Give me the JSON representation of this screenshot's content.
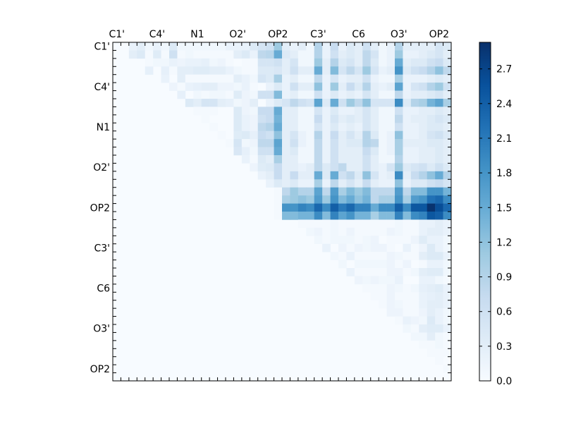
{
  "chart_data": {
    "type": "heatmap",
    "title": "",
    "size": 42,
    "x_tick_labels": [
      "C1'",
      "C4'",
      "N1",
      "O2'",
      "OP2",
      "C3'",
      "C6",
      "O3'",
      "OP2"
    ],
    "y_tick_labels": [
      "C1'",
      "C4'",
      "N1",
      "O2'",
      "OP2",
      "C3'",
      "C6",
      "O3'",
      "OP2"
    ],
    "label_every": 5,
    "colormap": "Blues",
    "colormap_stops": [
      "#f7fbff",
      "#deebf7",
      "#c6dbef",
      "#9ecae1",
      "#6baed6",
      "#4292c6",
      "#2171b5",
      "#08519c",
      "#08306b"
    ],
    "vmin": 0.0,
    "vmax": 2.93,
    "colorbar_ticks": [
      "0.0",
      "0.3",
      "0.6",
      "0.9",
      "1.2",
      "1.5",
      "1.8",
      "2.1",
      "2.4",
      "2.7"
    ],
    "rows": [
      {
        "start": 2,
        "values": [
          0.2,
          0.3,
          0.1,
          0.2,
          0.1,
          0.4,
          0.1,
          0.1,
          0.1,
          0.1,
          0.1,
          0.1,
          0.2,
          0.2,
          0.2,
          0.4,
          0.5,
          0.6,
          1.1,
          0.3,
          0.2,
          0.3,
          0.1,
          0.9,
          0.2,
          0.7,
          0.2,
          0.4,
          0.3,
          0.6,
          0.3,
          0.1,
          0.2,
          0.9,
          0.3,
          0.3,
          0.3,
          0.3,
          0.5,
          0.4
        ]
      },
      {
        "start": 2,
        "values": [
          0.3,
          0.4,
          0.05,
          0.35,
          0.05,
          0.6,
          0.05,
          0.1,
          0.05,
          0.05,
          0.05,
          0.05,
          0.05,
          0.3,
          0.4,
          0.2,
          0.8,
          0.85,
          1.5,
          0.4,
          0.3,
          0.1,
          0.1,
          0.9,
          0.2,
          0.6,
          0.3,
          0.4,
          0.3,
          0.8,
          0.5,
          0.1,
          0.2,
          1.1,
          0.2,
          0.2,
          0.3,
          0.4,
          0.5,
          0.3
        ]
      },
      {
        "start": 4,
        "values": [
          0.05,
          0.1,
          0.1,
          0.2,
          0.15,
          0.2,
          0.2,
          0.25,
          0.1,
          0.15,
          0.05,
          0,
          0.05,
          0.05,
          0.5,
          0.5,
          0.6,
          0.3,
          0.5,
          0.1,
          0.1,
          1.1,
          0.3,
          0.9,
          0.4,
          0.5,
          0.3,
          0.8,
          0.4,
          0.1,
          0.2,
          1.5,
          0.3,
          0.4,
          0.4,
          0.6,
          0.7,
          0.4
        ]
      },
      {
        "start": 4,
        "values": [
          0.25,
          0,
          0.25,
          0.05,
          0.3,
          0.3,
          0.35,
          0.35,
          0.3,
          0.3,
          0.2,
          0.1,
          0.05,
          0.05,
          0.4,
          0.4,
          0.45,
          0.3,
          0.6,
          0.3,
          0.3,
          1.5,
          0.3,
          1.3,
          0.5,
          0.8,
          0.5,
          1.1,
          0.5,
          0.2,
          0.3,
          1.8,
          0.4,
          0.6,
          0.7,
          0.9,
          1.2,
          0.8
        ]
      },
      {
        "start": 6,
        "values": [
          0.2,
          0,
          0.3,
          0.05,
          0.05,
          0.05,
          0.05,
          0.05,
          0.05,
          0.3,
          0.2,
          0.1,
          0.5,
          0.4,
          1.0,
          0.2,
          0.3,
          0.1,
          0.1,
          0.8,
          0.2,
          0.5,
          0.2,
          0.3,
          0.3,
          0.6,
          0.2,
          0.1,
          0.1,
          1.0,
          0.2,
          0.2,
          0.2,
          0.3,
          0.4,
          0.3
        ]
      },
      {
        "start": 7,
        "values": [
          0.15,
          0.05,
          0.2,
          0.25,
          0.3,
          0.3,
          0.15,
          0.15,
          0.1,
          0.2,
          0.05,
          0,
          0.2,
          0.4,
          0.2,
          0.6,
          0.3,
          0.3,
          1.2,
          0.2,
          1.1,
          0.3,
          0.7,
          0.4,
          0.9,
          0.3,
          0.2,
          0.3,
          1.6,
          0.2,
          0.5,
          0.6,
          0.9,
          1.1,
          0.6
        ]
      },
      {
        "start": 8,
        "values": [
          0.25,
          0,
          0.1,
          0.05,
          0.1,
          0.1,
          0.05,
          0.35,
          0.15,
          0.1,
          0.6,
          0.6,
          1.3,
          0.2,
          0.3,
          0.1,
          0.1,
          0.6,
          0.2,
          0.4,
          0.2,
          0.3,
          0.2,
          0.5,
          0.3,
          0.1,
          0.1,
          0.8,
          0.2,
          0.3,
          0.3,
          0.4,
          0.5,
          0.3
        ]
      },
      {
        "start": 9,
        "values": [
          0.4,
          0.3,
          0.5,
          0.5,
          0.3,
          0.25,
          0.1,
          0.15,
          0.3,
          0,
          0.2,
          0.4,
          0.5,
          0.8,
          0.6,
          0.5,
          1.6,
          0.4,
          1.5,
          0.6,
          1.1,
          0.8,
          1.2,
          0.5,
          0.5,
          0.5,
          1.9,
          0.4,
          0.9,
          1.0,
          1.4,
          1.6,
          1.0
        ]
      },
      {
        "start": 10,
        "values": [
          0.05,
          0.05,
          0.05,
          0,
          0,
          0.4,
          0.15,
          0.1,
          0.7,
          0.7,
          1.5,
          0.3,
          0.3,
          0.1,
          0.1,
          0.5,
          0.2,
          0.4,
          0.2,
          0.2,
          0.3,
          0.5,
          0.3,
          0.1,
          0.1,
          0.6,
          0.2,
          0.2,
          0.3,
          0.3,
          0.4,
          0.3
        ]
      },
      {
        "start": 11,
        "values": [
          0.05,
          0,
          0,
          0,
          0.4,
          0.2,
          0.15,
          0.6,
          0.7,
          1.4,
          0.3,
          0.3,
          0.1,
          0.1,
          0.7,
          0.2,
          0.5,
          0.3,
          0.4,
          0.3,
          0.5,
          0.3,
          0.1,
          0.1,
          0.8,
          0.2,
          0.3,
          0.3,
          0.4,
          0.5,
          0.4
        ]
      },
      {
        "start": 12,
        "values": [
          0.05,
          0,
          0,
          0.4,
          0.2,
          0.15,
          0.8,
          0.9,
          1.5,
          0.3,
          0.3,
          0.1,
          0.1,
          0.5,
          0.2,
          0.4,
          0.2,
          0.3,
          0.2,
          0.5,
          0.3,
          0.1,
          0.1,
          0.6,
          0.2,
          0.2,
          0.3,
          0.4,
          0.4,
          0.3
        ]
      },
      {
        "start": 13,
        "values": [
          0.05,
          0,
          0.35,
          0.4,
          0.25,
          0.7,
          0.6,
          1.2,
          0.3,
          0.5,
          0.2,
          0.1,
          0.9,
          0.2,
          0.7,
          0.3,
          0.5,
          0.3,
          0.9,
          0.4,
          0.1,
          0.2,
          1.2,
          0.2,
          0.2,
          0.3,
          0.5,
          0.6,
          0.4
        ]
      },
      {
        "start": 14,
        "values": [
          0.05,
          0.5,
          0.1,
          0.15,
          0.8,
          0.8,
          1.6,
          0.3,
          0.6,
          0.2,
          0.1,
          0.8,
          0.2,
          0.6,
          0.3,
          0.4,
          0.4,
          0.9,
          0.8,
          0.1,
          0.2,
          1.0,
          0.3,
          0.3,
          0.3,
          0.4,
          0.4,
          0.3
        ]
      },
      {
        "start": 15,
        "values": [
          0.45,
          0.25,
          0.1,
          0.6,
          0.6,
          1.5,
          0.3,
          0.4,
          0.1,
          0.1,
          0.8,
          0.2,
          0.6,
          0.3,
          0.3,
          0.3,
          0.7,
          0.4,
          0.1,
          0.2,
          1.0,
          0.2,
          0.2,
          0.3,
          0.3,
          0.4,
          0.3
        ]
      },
      {
        "start": 16,
        "values": [
          0.2,
          0.05,
          0.4,
          0.3,
          1.0,
          0.3,
          0.3,
          0.1,
          0.1,
          0.8,
          0.2,
          0.6,
          0.3,
          0.3,
          0.3,
          0.6,
          0.3,
          0.1,
          0.1,
          0.9,
          0.2,
          0.2,
          0.3,
          0.3,
          0.4,
          0.3
        ]
      },
      {
        "start": 17,
        "values": [
          0.15,
          0.35,
          0.4,
          0.7,
          0.3,
          0.3,
          0.2,
          0.3,
          0.8,
          0.4,
          0.6,
          0.8,
          0.3,
          0.3,
          0.6,
          0.3,
          0.2,
          0.5,
          1.1,
          0.4,
          0.5,
          0.6,
          0.4,
          0.6,
          0.4
        ]
      },
      {
        "start": 18,
        "values": [
          0.2,
          0.3,
          0.7,
          0.3,
          0.7,
          0.3,
          0.3,
          1.5,
          0.4,
          1.5,
          0.6,
          0.8,
          0.4,
          1.2,
          0.5,
          0.2,
          0.3,
          1.9,
          0.3,
          0.7,
          0.9,
          1.2,
          1.5,
          0.9
        ]
      },
      {
        "start": 19,
        "values": [
          0.2,
          0.4,
          0.3,
          0.4,
          0.2,
          0.2,
          1.0,
          0.2,
          0.8,
          0.3,
          0.5,
          0.3,
          0.7,
          0.3,
          0.2,
          0.2,
          1.2,
          0.2,
          0.4,
          0.4,
          0.6,
          0.7,
          0.5
        ]
      },
      {
        "start": 20,
        "values": [
          0.05,
          0.8,
          1.1,
          0.9,
          0.9,
          1.6,
          0.8,
          1.7,
          1.0,
          1.3,
          1.1,
          1.3,
          0.8,
          0.8,
          0.8,
          1.7,
          0.8,
          1.3,
          1.3,
          1.8,
          1.8,
          1.4
        ]
      },
      {
        "start": 20,
        "values": [
          0.05,
          1.0,
          1.1,
          1.2,
          1.1,
          1.7,
          1.1,
          1.8,
          1.3,
          1.5,
          1.2,
          1.4,
          0.8,
          1.0,
          1.0,
          1.8,
          1.0,
          1.7,
          1.8,
          2.2,
          2.3,
          1.9
        ]
      },
      {
        "start": 20,
        "values": [
          0.05,
          1.8,
          1.8,
          2.0,
          1.9,
          2.3,
          1.9,
          2.4,
          2.1,
          2.3,
          2.0,
          2.0,
          1.5,
          1.9,
          1.9,
          2.4,
          1.9,
          2.5,
          2.5,
          2.9,
          2.6,
          2.3
        ]
      },
      {
        "start": 20,
        "values": [
          0.05,
          1.3,
          1.3,
          1.4,
          1.4,
          1.9,
          1.3,
          2.0,
          1.6,
          1.8,
          1.4,
          1.4,
          1.0,
          1.3,
          1.3,
          2.0,
          1.3,
          1.9,
          2.0,
          2.5,
          2.4,
          1.9
        ]
      },
      {
        "start": 22,
        "values": [
          0,
          0.05,
          0.05,
          0.05,
          0.05,
          0.1,
          0.05,
          0.05,
          0.05,
          0.05,
          0.05,
          0.05,
          0.05,
          0.1,
          0.05,
          0.05,
          0.2,
          0.2,
          0.3,
          0.2
        ]
      },
      {
        "start": 24,
        "values": [
          0.1,
          0.15,
          0.05,
          0.1,
          0.05,
          0.15,
          0.05,
          0.05,
          0.05,
          0.05,
          0.15,
          0.1,
          0.05,
          0.05,
          0.2,
          0.3,
          0.3,
          0.2
        ]
      },
      {
        "start": 25,
        "values": [
          0.1,
          0.05,
          0.1,
          0.1,
          0.1,
          0.05,
          0.1,
          0.15,
          0,
          0.05,
          0.05,
          0.05,
          0.15,
          0.35,
          0.2,
          0.2,
          0.1
        ]
      },
      {
        "start": 26,
        "values": [
          0.2,
          0,
          0.15,
          0.05,
          0.15,
          0.1,
          0.15,
          0.15,
          0.05,
          0,
          0.2,
          0.05,
          0.15,
          0.4,
          0.2,
          0.1
        ]
      },
      {
        "start": 27,
        "values": [
          0.1,
          0.05,
          0.2,
          0.05,
          0.05,
          0.05,
          0.05,
          0.15,
          0.1,
          0.05,
          0.05,
          0.3,
          0.4,
          0.4,
          0.2
        ]
      },
      {
        "start": 28,
        "values": [
          0.1,
          0,
          0.1,
          0.1,
          0.1,
          0.1,
          0.15,
          0.05,
          0.15,
          0,
          0.05,
          0.2,
          0.2,
          0.1
        ]
      },
      {
        "start": 29,
        "values": [
          0.2,
          0.05,
          0.05,
          0.05,
          0.05,
          0.15,
          0.15,
          0.05,
          0.1,
          0.3,
          0.35,
          0.35,
          0.1
        ]
      },
      {
        "start": 30,
        "values": [
          0.15,
          0.1,
          0.15,
          0.1,
          0.1,
          0.2,
          0,
          0,
          0.2,
          0.2,
          0.1,
          0.05
        ]
      },
      {
        "start": 31,
        "values": [
          0.05,
          0.05,
          0.05,
          0.15,
          0.1,
          0.05,
          0.1,
          0.25,
          0.3,
          0.35,
          0.2
        ]
      },
      {
        "start": 32,
        "values": [
          0.05,
          0.05,
          0.15,
          0.05,
          0.05,
          0.05,
          0.2,
          0.25,
          0.3,
          0.2
        ]
      },
      {
        "start": 33,
        "values": [
          0.05,
          0.15,
          0.1,
          0.05,
          0.05,
          0.2,
          0.3,
          0.3,
          0.2
        ]
      },
      {
        "start": 34,
        "values": [
          0.15,
          0.15,
          0.05,
          0.05,
          0.15,
          0.3,
          0.2,
          0.1
        ]
      },
      {
        "start": 35,
        "values": [
          0.05,
          0.2,
          0.15,
          0.1,
          0.4,
          0.2,
          0.1
        ]
      },
      {
        "start": 36,
        "values": [
          0.1,
          0.05,
          0.3,
          0.35,
          0.35,
          0.2
        ]
      },
      {
        "start": 37,
        "values": [
          0.1,
          0.1,
          0.3,
          0.1,
          0.05
        ]
      },
      {
        "start": 38,
        "values": [
          0.05,
          0.05,
          0.1,
          0.05
        ]
      },
      {
        "start": 39,
        "values": [
          0.05,
          0.05,
          0.05
        ]
      },
      {
        "start": 40,
        "values": [
          0.05,
          0
        ]
      },
      {
        "start": 41,
        "values": [
          0.05
        ]
      },
      {
        "start": 41,
        "values": [
          0
        ]
      }
    ]
  }
}
